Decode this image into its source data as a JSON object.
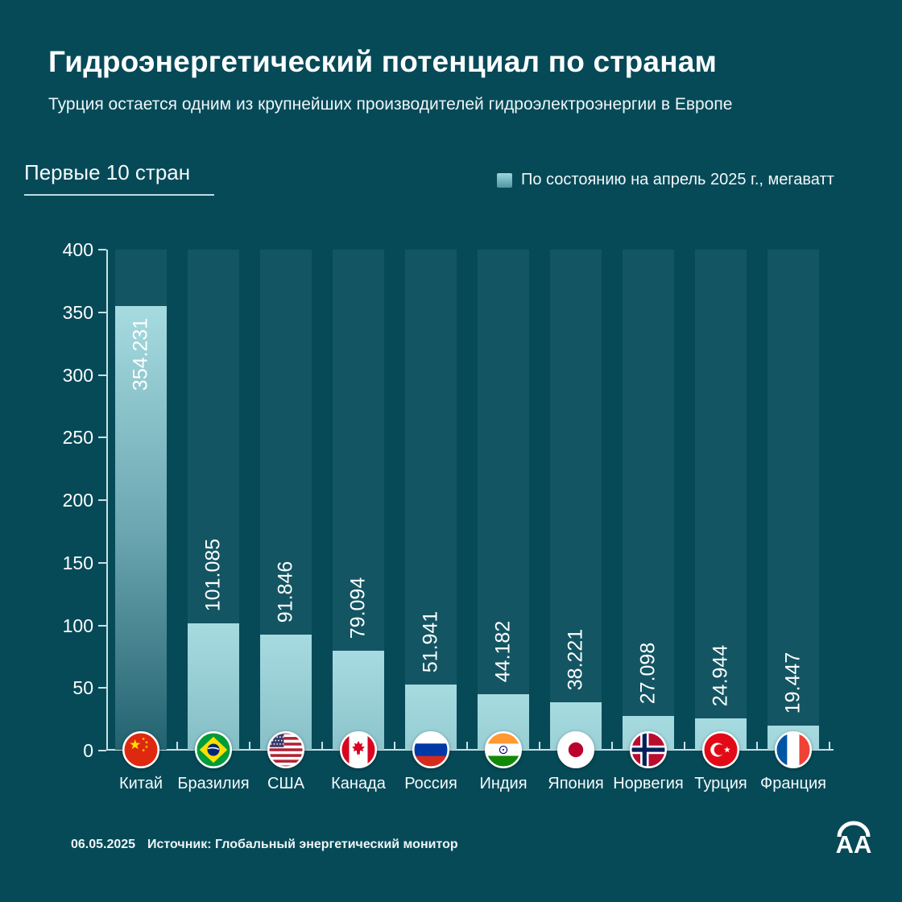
{
  "title": "Гидроэнергетический потенциал по странам",
  "subtitle": "Турция остается одним из крупнейших производителей гидроэлектроэнергии в Европе",
  "section_label": "Первые 10 стран",
  "legend": {
    "label": "По состоянию на апрель 2025 г., мегаватт"
  },
  "footer": {
    "date": "06.05.2025",
    "source": "Источник: Глобальный энергетический монитор"
  },
  "logo_text": "AA",
  "colors": {
    "background": "#064a58",
    "column_background": "#135563",
    "bar_gradient_top": "#a6dbe0",
    "bar_gradient_bottom": "#10505e",
    "axis": "#c9e0e6",
    "text": "#ffffff"
  },
  "chart_data": {
    "type": "bar",
    "title": "Гидроэнергетический потенциал по странам",
    "subtitle": "Первые 10 стран",
    "legend_entry": "По состоянию на апрель 2025 г., мегаватт",
    "unit": "мегаватт",
    "categories": [
      "Китай",
      "Бразилия",
      "США",
      "Канада",
      "Россия",
      "Индия",
      "Япония",
      "Норвегия",
      "Турция",
      "Франция"
    ],
    "values": [
      354.231,
      101.085,
      91.846,
      79.094,
      51.941,
      44.182,
      38.221,
      27.098,
      24.944,
      19.447
    ],
    "value_labels": [
      "354.231",
      "101.085",
      "91.846",
      "79.094",
      "51.941",
      "44.182",
      "38.221",
      "27.098",
      "24.944",
      "19.447"
    ],
    "flags": [
      "china",
      "brazil",
      "usa",
      "canada",
      "russia",
      "india",
      "japan",
      "norway",
      "turkey",
      "france"
    ],
    "xlabel": "",
    "ylabel": "",
    "yticks": [
      0,
      50,
      100,
      150,
      200,
      250,
      300,
      350,
      400
    ],
    "ylim": [
      0,
      400
    ],
    "grid": false,
    "legend_position": "top-right",
    "value_label_orientation": "rotated-90"
  }
}
